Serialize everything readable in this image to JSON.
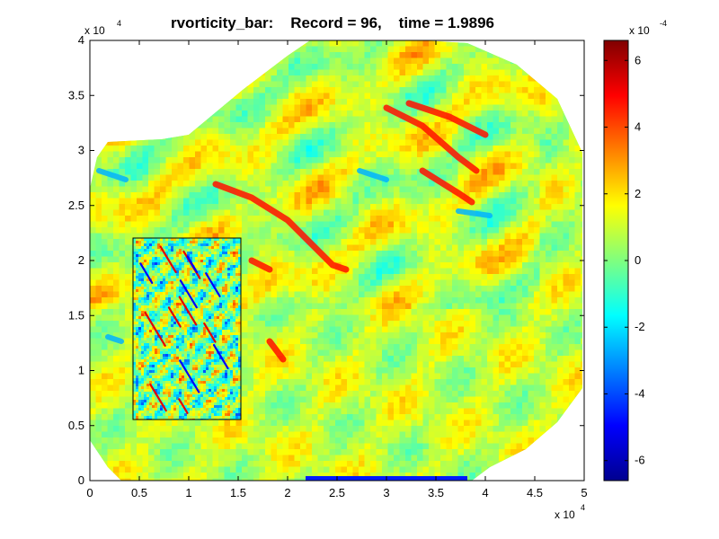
{
  "chart_data": {
    "type": "heatmap",
    "title": "rvorticity_bar:    Record = 96,    time = 1.9896",
    "x_range": [
      0,
      50000
    ],
    "y_range": [
      0,
      40000
    ],
    "x_ticks": [
      "0",
      "0.5",
      "1",
      "1.5",
      "2",
      "2.5",
      "3",
      "3.5",
      "4",
      "4.5",
      "5"
    ],
    "y_ticks": [
      "0",
      "0.5",
      "1",
      "1.5",
      "2",
      "2.5",
      "3",
      "3.5",
      "4"
    ],
    "x_exponent": {
      "base": "x 10",
      "power": "4"
    },
    "y_exponent": {
      "base": "x 10",
      "power": "4"
    },
    "colorbar": {
      "range": [
        -0.00066,
        0.00066
      ],
      "ticks": [
        "6",
        "4",
        "2",
        "0",
        "-2",
        "-4",
        "-6"
      ],
      "tick_values": [
        6,
        4,
        2,
        0,
        -2,
        -4,
        -6
      ],
      "exponent": {
        "base": "x 10",
        "power": "-4"
      },
      "colormap": "jet"
    },
    "inset_box": {
      "x": [
        4200,
        15200
      ],
      "y": [
        5500,
        22000
      ]
    },
    "grid": false
  }
}
